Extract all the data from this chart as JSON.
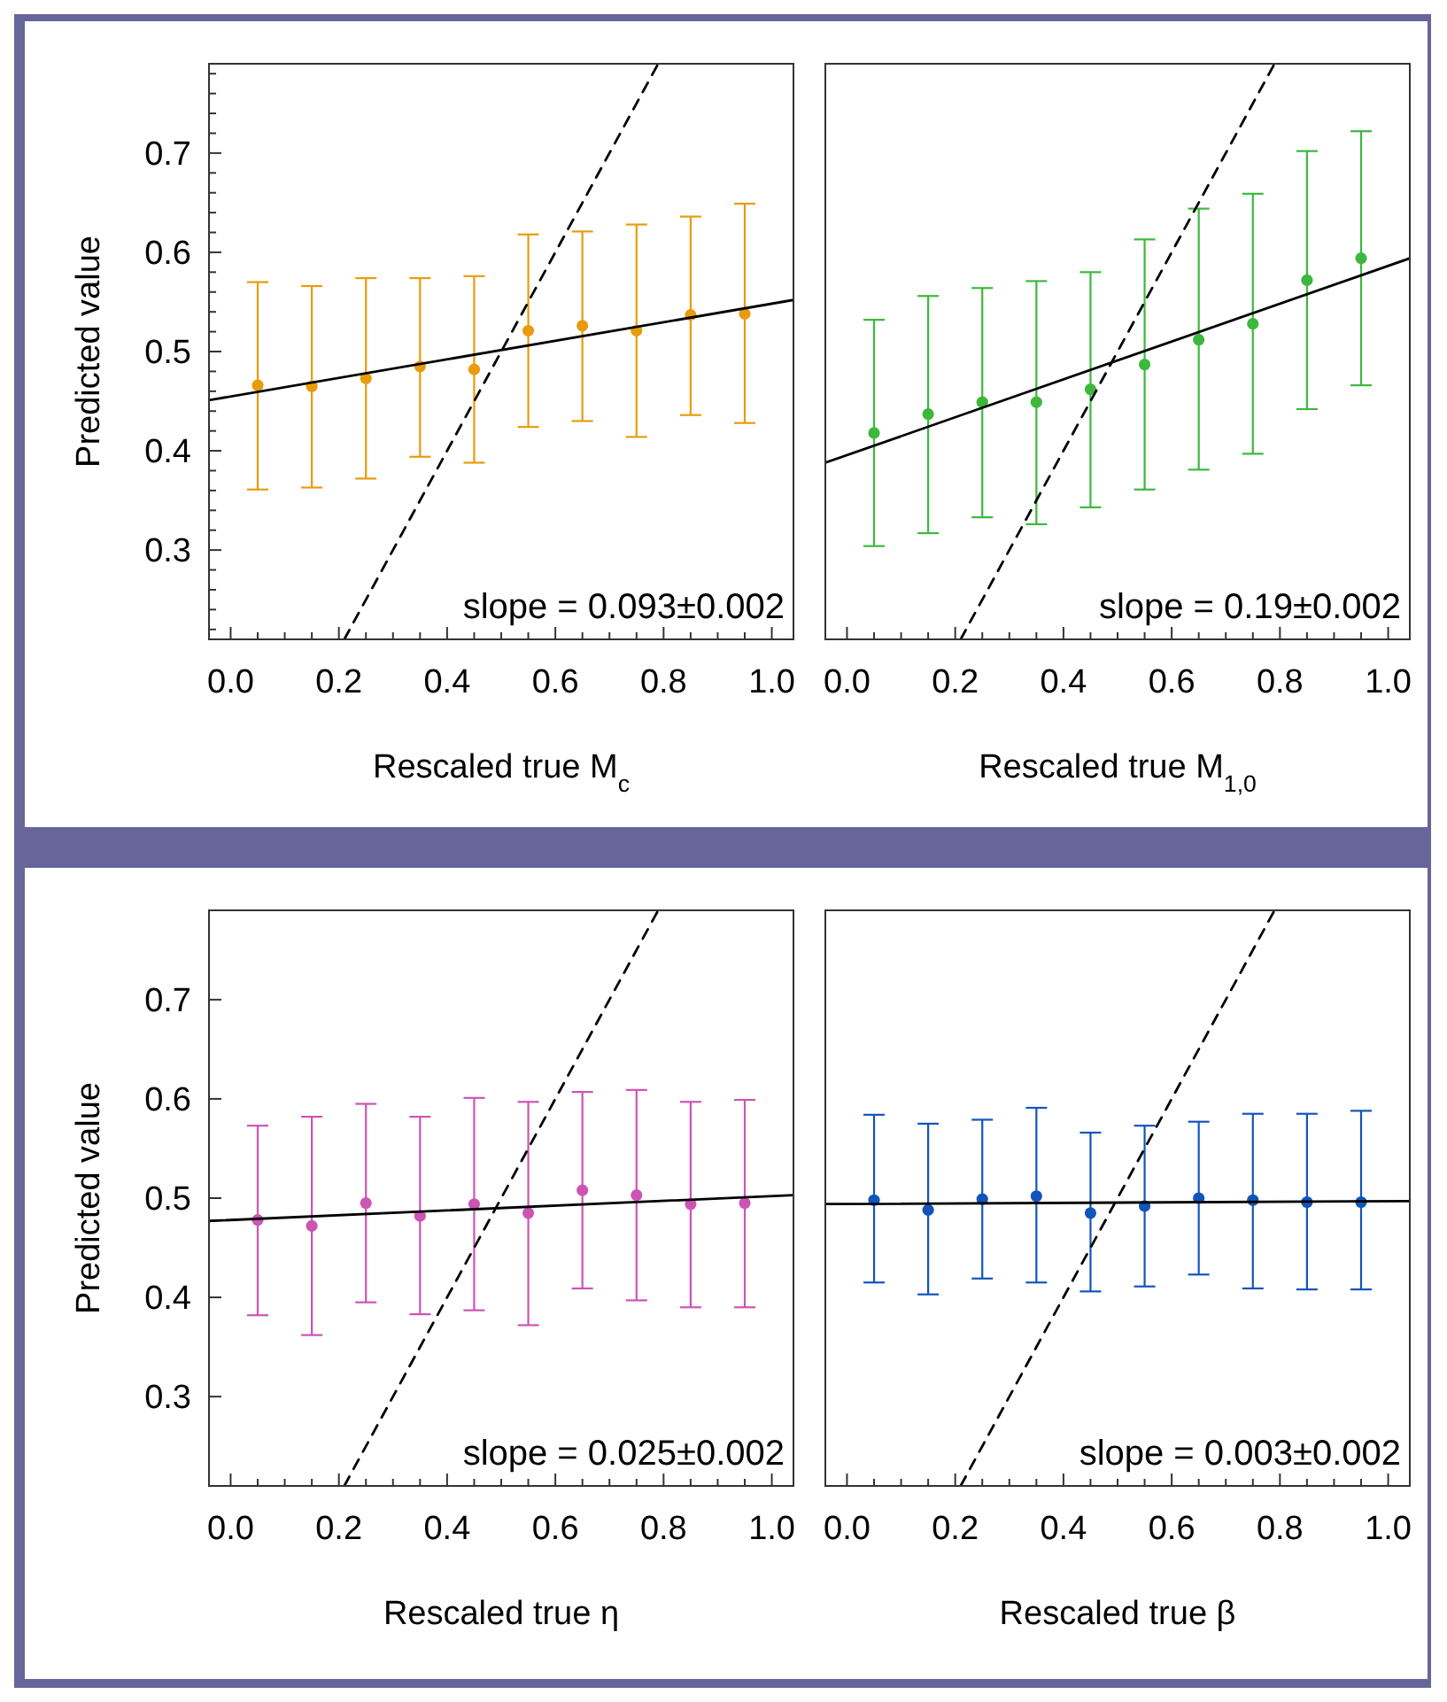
{
  "chart_data": [
    {
      "type": "scatter",
      "xlabel": "Rescaled true M$_{c}$",
      "ylabel": "Predicted value",
      "xlim": [
        -0.04,
        1.04
      ],
      "ylim": [
        0.21,
        0.79
      ],
      "xticks": [
        {
          "value": 0,
          "label": "0.0"
        },
        {
          "value": 0.05,
          "label": null
        },
        {
          "value": 0.1,
          "label": null
        },
        {
          "value": 0.15,
          "label": null
        },
        0.2,
        {
          "value": 0.25,
          "label": null
        },
        {
          "value": 0.3,
          "label": null
        },
        {
          "value": 0.35,
          "label": null
        },
        0.4,
        {
          "value": 0.45,
          "label": null
        },
        {
          "value": 0.5,
          "label": null
        },
        {
          "value": 0.55,
          "label": null
        },
        0.6,
        {
          "value": 0.65,
          "label": null
        },
        {
          "value": 0.7,
          "label": null
        },
        {
          "value": 0.75,
          "label": null
        },
        0.8,
        {
          "value": 0.85,
          "label": null
        },
        {
          "value": 0.9,
          "label": null
        },
        {
          "value": 0.95,
          "label": null
        },
        {
          "value": 1,
          "label": "1.0"
        }
      ],
      "yticks": [
        {
          "value": 0.22,
          "label": null
        },
        {
          "value": 0.24,
          "label": null
        },
        {
          "value": 0.26,
          "label": null
        },
        {
          "value": 0.28,
          "label": null
        },
        0.3,
        {
          "value": 0.32,
          "label": null
        },
        {
          "value": 0.34,
          "label": null
        },
        {
          "value": 0.36,
          "label": null
        },
        {
          "value": 0.38,
          "label": null
        },
        0.4,
        {
          "value": 0.42,
          "label": null
        },
        {
          "value": 0.44,
          "label": null
        },
        {
          "value": 0.46,
          "label": null
        },
        {
          "value": 0.48,
          "label": null
        },
        0.5,
        {
          "value": 0.52,
          "label": null
        },
        {
          "value": 0.54,
          "label": null
        },
        {
          "value": 0.56,
          "label": null
        },
        {
          "value": 0.58,
          "label": null
        },
        0.6,
        {
          "value": 0.62,
          "label": null
        },
        {
          "value": 0.64,
          "label": null
        },
        {
          "value": 0.66,
          "label": null
        },
        {
          "value": 0.68,
          "label": null
        },
        0.7,
        {
          "value": 0.72,
          "label": null
        },
        {
          "value": 0.74,
          "label": null
        },
        {
          "value": 0.76,
          "label": null
        },
        {
          "value": 0.78,
          "label": null
        }
      ],
      "marker": "circle",
      "grid": false,
      "annotations": [
        "slope = 0.093±0.002"
      ],
      "series": [
        {
          "color": "#e89c0c",
          "x": [
            0.05,
            0.15,
            0.25,
            0.35,
            0.45,
            0.55,
            0.65,
            0.75,
            0.85,
            0.95
          ],
          "values": [
            0.466,
            0.465,
            0.473,
            0.485,
            0.482,
            0.521,
            0.526,
            0.521,
            0.537,
            0.538
          ],
          "errors": [
            [
              0.361,
              0.57
            ],
            [
              0.363,
              0.566
            ],
            [
              0.372,
              0.574
            ],
            [
              0.394,
              0.574
            ],
            [
              0.388,
              0.576
            ],
            [
              0.424,
              0.618
            ],
            [
              0.43,
              0.621
            ],
            [
              0.414,
              0.628
            ],
            [
              0.436,
              0.636
            ],
            [
              0.428,
              0.649
            ]
          ]
        },
        {
          "type": "line",
          "marker": "none",
          "color": "#000000",
          "line_style": "solid",
          "x": [
            -0.04,
            1.04
          ],
          "values": [
            0.451,
            0.552
          ]
        },
        {
          "type": "line",
          "marker": "none",
          "color": "#000000",
          "line_style": "dashed",
          "x": [
            0.21,
            0.79
          ],
          "values": [
            0.21,
            0.79
          ]
        }
      ]
    },
    {
      "type": "scatter",
      "xlabel": "Rescaled true M$_{1,0}$",
      "xlim": [
        -0.04,
        1.04
      ],
      "ylim": [
        0.21,
        0.79
      ],
      "tick_labels": "x",
      "xticks": [
        {
          "value": 0,
          "label": "0.0"
        },
        {
          "value": 0.05,
          "label": null
        },
        {
          "value": 0.1,
          "label": null
        },
        {
          "value": 0.15,
          "label": null
        },
        0.2,
        {
          "value": 0.25,
          "label": null
        },
        {
          "value": 0.3,
          "label": null
        },
        {
          "value": 0.35,
          "label": null
        },
        0.4,
        {
          "value": 0.45,
          "label": null
        },
        {
          "value": 0.5,
          "label": null
        },
        {
          "value": 0.55,
          "label": null
        },
        0.6,
        {
          "value": 0.65,
          "label": null
        },
        {
          "value": 0.7,
          "label": null
        },
        {
          "value": 0.75,
          "label": null
        },
        0.8,
        {
          "value": 0.85,
          "label": null
        },
        {
          "value": 0.9,
          "label": null
        },
        {
          "value": 0.95,
          "label": null
        },
        {
          "value": 1,
          "label": "1.0"
        }
      ],
      "marker": "circle",
      "grid": false,
      "annotations": [
        "slope = 0.19±0.002"
      ],
      "series": [
        {
          "color": "#3cb83c",
          "x": [
            0.05,
            0.15,
            0.25,
            0.35,
            0.45,
            0.55,
            0.65,
            0.75,
            0.85,
            0.95
          ],
          "values": [
            0.418,
            0.437,
            0.449,
            0.449,
            0.462,
            0.487,
            0.512,
            0.528,
            0.572,
            0.594
          ],
          "errors": [
            [
              0.304,
              0.532
            ],
            [
              0.317,
              0.556
            ],
            [
              0.333,
              0.564
            ],
            [
              0.326,
              0.571
            ],
            [
              0.343,
              0.58
            ],
            [
              0.361,
              0.613
            ],
            [
              0.381,
              0.644
            ],
            [
              0.397,
              0.659
            ],
            [
              0.442,
              0.702
            ],
            [
              0.466,
              0.722
            ]
          ]
        },
        {
          "type": "line",
          "marker": "none",
          "color": "#000000",
          "line_style": "solid",
          "x": [
            -0.04,
            1.04
          ],
          "values": [
            0.388,
            0.594
          ]
        },
        {
          "type": "line",
          "marker": "none",
          "color": "#000000",
          "line_style": "dashed",
          "x": [
            0.21,
            0.79
          ],
          "values": [
            0.21,
            0.79
          ]
        }
      ]
    },
    {
      "type": "scatter",
      "xlabel": "Rescaled true η",
      "ylabel": "Predicted value",
      "xlim": [
        -0.04,
        1.04
      ],
      "ylim": [
        0.21,
        0.79
      ],
      "xticks": [
        {
          "value": 0,
          "label": "0.0"
        },
        {
          "value": 0.05,
          "label": null
        },
        {
          "value": 0.1,
          "label": null
        },
        {
          "value": 0.15,
          "label": null
        },
        0.2,
        {
          "value": 0.25,
          "label": null
        },
        {
          "value": 0.3,
          "label": null
        },
        {
          "value": 0.35,
          "label": null
        },
        0.4,
        {
          "value": 0.45,
          "label": null
        },
        {
          "value": 0.5,
          "label": null
        },
        {
          "value": 0.55,
          "label": null
        },
        0.6,
        {
          "value": 0.65,
          "label": null
        },
        {
          "value": 0.7,
          "label": null
        },
        {
          "value": 0.75,
          "label": null
        },
        0.8,
        {
          "value": 0.85,
          "label": null
        },
        {
          "value": 0.9,
          "label": null
        },
        {
          "value": 0.95,
          "label": null
        },
        {
          "value": 1,
          "label": "1.0"
        }
      ],
      "yticks": [
        0.3,
        0.4,
        0.5,
        0.6,
        0.7
      ],
      "marker": "circle",
      "grid": false,
      "annotations": [
        "slope = 0.025±0.002"
      ],
      "series": [
        {
          "color": "#cc55b4",
          "x": [
            0.05,
            0.15,
            0.25,
            0.35,
            0.45,
            0.55,
            0.65,
            0.75,
            0.85,
            0.95
          ],
          "values": [
            0.478,
            0.472,
            0.495,
            0.482,
            0.494,
            0.485,
            0.508,
            0.503,
            0.494,
            0.495
          ],
          "errors": [
            [
              0.382,
              0.573
            ],
            [
              0.362,
              0.582
            ],
            [
              0.395,
              0.595
            ],
            [
              0.383,
              0.582
            ],
            [
              0.387,
              0.601
            ],
            [
              0.372,
              0.597
            ],
            [
              0.409,
              0.607
            ],
            [
              0.397,
              0.609
            ],
            [
              0.39,
              0.597
            ],
            [
              0.39,
              0.599
            ]
          ]
        },
        {
          "type": "line",
          "marker": "none",
          "color": "#000000",
          "line_style": "solid",
          "x": [
            -0.04,
            1.04
          ],
          "values": [
            0.477,
            0.503
          ]
        },
        {
          "type": "line",
          "marker": "none",
          "color": "#000000",
          "line_style": "dashed",
          "x": [
            0.21,
            0.79
          ],
          "values": [
            0.21,
            0.79
          ]
        }
      ]
    },
    {
      "type": "scatter",
      "xlabel": "Rescaled true β",
      "xlim": [
        -0.04,
        1.04
      ],
      "ylim": [
        0.21,
        0.79
      ],
      "tick_labels": "x",
      "xticks": [
        {
          "value": 0,
          "label": "0.0"
        },
        {
          "value": 0.05,
          "label": null
        },
        {
          "value": 0.1,
          "label": null
        },
        {
          "value": 0.15,
          "label": null
        },
        0.2,
        {
          "value": 0.25,
          "label": null
        },
        {
          "value": 0.3,
          "label": null
        },
        {
          "value": 0.35,
          "label": null
        },
        0.4,
        {
          "value": 0.45,
          "label": null
        },
        {
          "value": 0.5,
          "label": null
        },
        {
          "value": 0.55,
          "label": null
        },
        0.6,
        {
          "value": 0.65,
          "label": null
        },
        {
          "value": 0.7,
          "label": null
        },
        {
          "value": 0.75,
          "label": null
        },
        0.8,
        {
          "value": 0.85,
          "label": null
        },
        {
          "value": 0.9,
          "label": null
        },
        {
          "value": 0.95,
          "label": null
        },
        {
          "value": 1,
          "label": "1.0"
        }
      ],
      "marker": "circle",
      "grid": false,
      "annotations": [
        "slope = 0.003±0.002"
      ],
      "series": [
        {
          "color": "#1155bb",
          "x": [
            0.05,
            0.15,
            0.25,
            0.35,
            0.45,
            0.55,
            0.65,
            0.75,
            0.85,
            0.95
          ],
          "values": [
            0.498,
            0.488,
            0.499,
            0.502,
            0.485,
            0.492,
            0.5,
            0.498,
            0.496,
            0.496
          ],
          "errors": [
            [
              0.415,
              0.584
            ],
            [
              0.403,
              0.575
            ],
            [
              0.419,
              0.579
            ],
            [
              0.415,
              0.591
            ],
            [
              0.406,
              0.566
            ],
            [
              0.411,
              0.573
            ],
            [
              0.423,
              0.577
            ],
            [
              0.409,
              0.585
            ],
            [
              0.408,
              0.585
            ],
            [
              0.408,
              0.588
            ]
          ]
        },
        {
          "type": "line",
          "marker": "none",
          "color": "#000000",
          "line_style": "solid",
          "x": [
            -0.04,
            1.04
          ],
          "values": [
            0.494,
            0.497
          ]
        },
        {
          "type": "line",
          "marker": "none",
          "color": "#000000",
          "line_style": "dashed",
          "x": [
            0.21,
            0.79
          ],
          "values": [
            0.21,
            0.79
          ]
        }
      ]
    }
  ]
}
